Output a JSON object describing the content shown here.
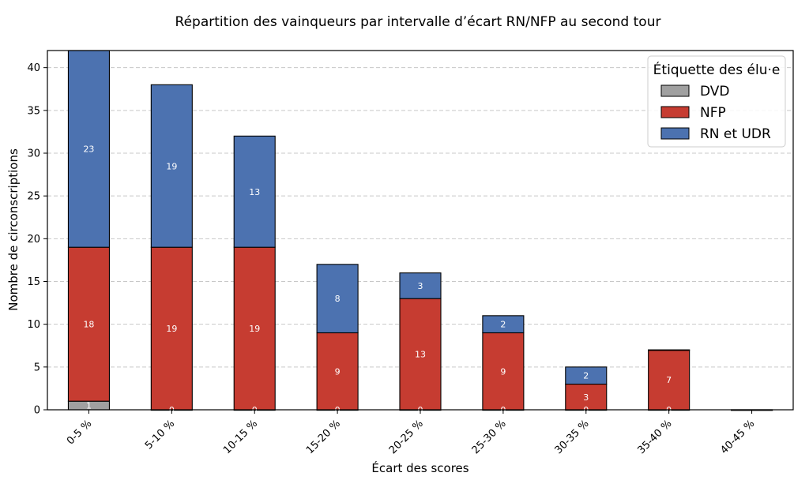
{
  "chart_data": {
    "type": "bar",
    "stacked": true,
    "title": "Répartition des vainqueurs par intervalle d’écart RN/NFP au second tour",
    "xlabel": "Écart des scores",
    "ylabel": "Nombre de circonscriptions",
    "ylim": [
      0,
      42
    ],
    "yticks": [
      "0",
      "5",
      "10",
      "15",
      "20",
      "25",
      "30",
      "35",
      "40"
    ],
    "ytick_values": [
      0,
      5,
      10,
      15,
      20,
      25,
      30,
      35,
      40
    ],
    "grid": true,
    "legend_title": "Étiquette des élu·e",
    "legend_position": "top-right",
    "categories": [
      "0-5 %",
      "5-10 %",
      "10-15 %",
      "15-20 %",
      "20-25 %",
      "25-30 %",
      "30-35 %",
      "35-40 %",
      "40-45 %"
    ],
    "series": [
      {
        "name": "DVD",
        "color": "#a0a0a0",
        "values": [
          1,
          0,
          0,
          0,
          0,
          0,
          0,
          0,
          0
        ]
      },
      {
        "name": "NFP",
        "color": "#c63c31",
        "values": [
          18,
          19,
          19,
          9,
          13,
          9,
          3,
          7,
          0
        ]
      },
      {
        "name": "RN et UDR",
        "color": "#4c72b0",
        "values": [
          23,
          19,
          13,
          8,
          3,
          2,
          2,
          0,
          0
        ]
      }
    ],
    "data_labels": [
      [
        "1",
        "0",
        "0",
        "0",
        "0",
        "0",
        "0",
        "0",
        ""
      ],
      [
        "18",
        "19",
        "19",
        "9",
        "13",
        "9",
        "3",
        "7",
        ""
      ],
      [
        "23",
        "19",
        "13",
        "8",
        "3",
        "2",
        "2",
        "",
        ""
      ]
    ]
  }
}
